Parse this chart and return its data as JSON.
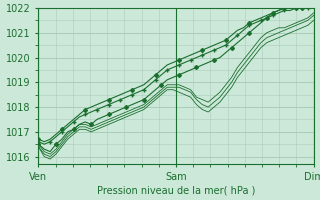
{
  "title": "",
  "xlabel": "Pression niveau de la mer( hPa )",
  "bg_color": "#cce8d8",
  "grid_color": "#aaccbb",
  "line_color": "#1a6e2e",
  "marker_color": "#1a6e2e",
  "x_tick_labels": [
    "Ven",
    "Sam",
    "Dim"
  ],
  "x_tick_positions": [
    0,
    48,
    96
  ],
  "ylim": [
    1015.7,
    1022.0
  ],
  "yticks": [
    1016,
    1017,
    1018,
    1019,
    1020,
    1021,
    1022
  ],
  "total_hours": 96,
  "series": [
    {
      "data": [
        1016.5,
        1016.3,
        1016.2,
        1016.5,
        1016.7,
        1017.0,
        1017.1,
        1017.3,
        1017.4,
        1017.3,
        1017.5,
        1017.6,
        1017.7,
        1017.8,
        1017.9,
        1018.0,
        1018.1,
        1018.2,
        1018.3,
        1018.5,
        1018.7,
        1018.9,
        1019.1,
        1019.2,
        1019.3,
        1019.4,
        1019.5,
        1019.6,
        1019.7,
        1019.8,
        1019.9,
        1020.0,
        1020.2,
        1020.4,
        1020.6,
        1020.8,
        1021.0,
        1021.2,
        1021.4,
        1021.6,
        1021.8,
        1021.9,
        1022.0,
        1022.0,
        1022.0,
        1022.0,
        1022.0,
        1022.0
      ],
      "marker": "D",
      "markersize": 2.0,
      "markevery": 3,
      "linewidth": 0.8
    },
    {
      "data": [
        1016.6,
        1016.5,
        1016.6,
        1016.8,
        1017.0,
        1017.2,
        1017.4,
        1017.6,
        1017.7,
        1017.8,
        1017.9,
        1018.0,
        1018.1,
        1018.2,
        1018.3,
        1018.4,
        1018.5,
        1018.6,
        1018.7,
        1018.9,
        1019.1,
        1019.3,
        1019.5,
        1019.6,
        1019.7,
        1019.8,
        1019.9,
        1020.0,
        1020.1,
        1020.2,
        1020.3,
        1020.4,
        1020.5,
        1020.7,
        1020.9,
        1021.1,
        1021.3,
        1021.4,
        1021.5,
        1021.6,
        1021.7,
        1021.8,
        1021.9,
        1021.9,
        1022.0,
        1022.0,
        1022.0,
        1022.0
      ],
      "marker": "+",
      "markersize": 3.0,
      "markevery": 2,
      "linewidth": 0.8
    },
    {
      "data": [
        1016.5,
        1016.2,
        1016.1,
        1016.3,
        1016.6,
        1016.9,
        1017.1,
        1017.3,
        1017.3,
        1017.2,
        1017.3,
        1017.4,
        1017.5,
        1017.6,
        1017.7,
        1017.8,
        1017.9,
        1018.0,
        1018.1,
        1018.3,
        1018.5,
        1018.7,
        1018.9,
        1018.9,
        1018.9,
        1018.8,
        1018.7,
        1018.4,
        1018.3,
        1018.2,
        1018.4,
        1018.6,
        1018.9,
        1019.2,
        1019.6,
        1019.9,
        1020.2,
        1020.5,
        1020.8,
        1021.0,
        1021.1,
        1021.2,
        1021.2,
        1021.3,
        1021.4,
        1021.5,
        1021.6,
        1021.8
      ],
      "marker": null,
      "markersize": 0,
      "markevery": 1,
      "linewidth": 0.6
    },
    {
      "data": [
        1016.4,
        1016.1,
        1016.0,
        1016.2,
        1016.5,
        1016.8,
        1017.0,
        1017.2,
        1017.2,
        1017.1,
        1017.2,
        1017.3,
        1017.4,
        1017.5,
        1017.6,
        1017.7,
        1017.8,
        1017.9,
        1018.0,
        1018.2,
        1018.4,
        1018.6,
        1018.8,
        1018.8,
        1018.8,
        1018.7,
        1018.6,
        1018.3,
        1018.1,
        1018.0,
        1018.2,
        1018.4,
        1018.7,
        1019.0,
        1019.4,
        1019.7,
        1020.0,
        1020.3,
        1020.6,
        1020.8,
        1020.9,
        1021.0,
        1021.1,
        1021.2,
        1021.3,
        1021.4,
        1021.5,
        1021.7
      ],
      "marker": null,
      "markersize": 0,
      "markevery": 1,
      "linewidth": 0.6
    },
    {
      "data": [
        1016.4,
        1016.0,
        1015.9,
        1016.1,
        1016.4,
        1016.7,
        1016.9,
        1017.1,
        1017.1,
        1017.0,
        1017.1,
        1017.2,
        1017.3,
        1017.4,
        1017.5,
        1017.6,
        1017.7,
        1017.8,
        1017.9,
        1018.1,
        1018.3,
        1018.5,
        1018.7,
        1018.7,
        1018.6,
        1018.5,
        1018.4,
        1018.1,
        1017.9,
        1017.8,
        1018.0,
        1018.2,
        1018.5,
        1018.8,
        1019.2,
        1019.5,
        1019.8,
        1020.1,
        1020.4,
        1020.6,
        1020.7,
        1020.8,
        1020.9,
        1021.0,
        1021.1,
        1021.2,
        1021.3,
        1021.5
      ],
      "marker": null,
      "markersize": 0,
      "markevery": 1,
      "linewidth": 0.6
    },
    {
      "data": [
        1016.7,
        1016.6,
        1016.7,
        1016.9,
        1017.1,
        1017.3,
        1017.5,
        1017.7,
        1017.9,
        1018.0,
        1018.1,
        1018.2,
        1018.3,
        1018.4,
        1018.5,
        1018.6,
        1018.7,
        1018.8,
        1018.9,
        1019.1,
        1019.3,
        1019.5,
        1019.7,
        1019.8,
        1019.9,
        1020.0,
        1020.1,
        1020.2,
        1020.3,
        1020.4,
        1020.5,
        1020.6,
        1020.7,
        1020.9,
        1021.1,
        1021.2,
        1021.4,
        1021.5,
        1021.6,
        1021.7,
        1021.8,
        1021.9,
        1022.0,
        1022.0,
        1022.0,
        1022.0,
        1022.0,
        1022.0
      ],
      "marker": "D",
      "markersize": 2.0,
      "markevery": 4,
      "linewidth": 0.8
    }
  ]
}
